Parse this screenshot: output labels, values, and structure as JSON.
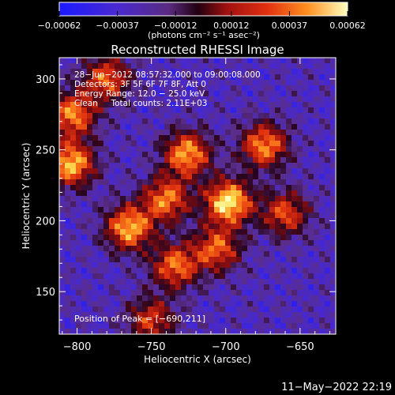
{
  "chart_data": {
    "type": "heatmap",
    "title": "Reconstructed RHESSI Image",
    "xlabel": "Heliocentric X (arcsec)",
    "ylabel": "Heliocentric Y (arcsec)",
    "xlim": [
      -812,
      -626
    ],
    "ylim": [
      120,
      315
    ],
    "xticks": [
      -800,
      -750,
      -700,
      -650
    ],
    "xtick_labels": [
      "−800",
      "−750",
      "−700",
      "−650"
    ],
    "yticks": [
      150,
      200,
      250,
      300
    ],
    "ytick_labels": [
      "150",
      "200",
      "250",
      "300"
    ],
    "colorbar": {
      "range": [
        -0.00062,
        0.00062
      ],
      "ticks": [
        -0.00062,
        -0.00037,
        -0.00012,
        0.00012,
        0.00037,
        0.00062
      ],
      "tick_labels": [
        "−0.00062",
        "−0.00037",
        "−0.00012",
        "0.00012",
        "0.00037",
        "0.00062"
      ],
      "units": "(photons cm⁻² s⁻¹ asec⁻²)",
      "colors": [
        "#1a1aff",
        "#4a2ad0",
        "#6a3aa0",
        "#3a0a30",
        "#a01010",
        "#e03010",
        "#ff8010",
        "#ffd040",
        "#ffffa0"
      ]
    },
    "legend_text": [
      "28−Jun−2012 08:57:32.000 to 09:00:08.000",
      "Detectors: 3F 5F 6F 7F 8F, Att 0",
      "Energy Range: 12.0 − 25.0 keV",
      "Clean     Total counts: 2.11E+03"
    ],
    "peak_text": "Position of Peak = [−690,211]",
    "sources": [
      {
        "x": -698,
        "y": 213,
        "value": 0.00062
      },
      {
        "x": -726,
        "y": 247,
        "value": 0.00045
      },
      {
        "x": -765,
        "y": 195,
        "value": 0.00048
      },
      {
        "x": -804,
        "y": 240,
        "value": 0.0005
      },
      {
        "x": -803,
        "y": 275,
        "value": 0.00038
      },
      {
        "x": -674,
        "y": 253,
        "value": 0.0004
      },
      {
        "x": -740,
        "y": 215,
        "value": 0.00036
      },
      {
        "x": -734,
        "y": 168,
        "value": 0.00034
      },
      {
        "x": -706,
        "y": 180,
        "value": 0.0003
      },
      {
        "x": -660,
        "y": 205,
        "value": 0.00025
      },
      {
        "x": -780,
        "y": 300,
        "value": 0.0003
      },
      {
        "x": -750,
        "y": 130,
        "value": 0.0002
      }
    ]
  },
  "footer": {
    "timestamp": "11−May−2022 22:19"
  }
}
